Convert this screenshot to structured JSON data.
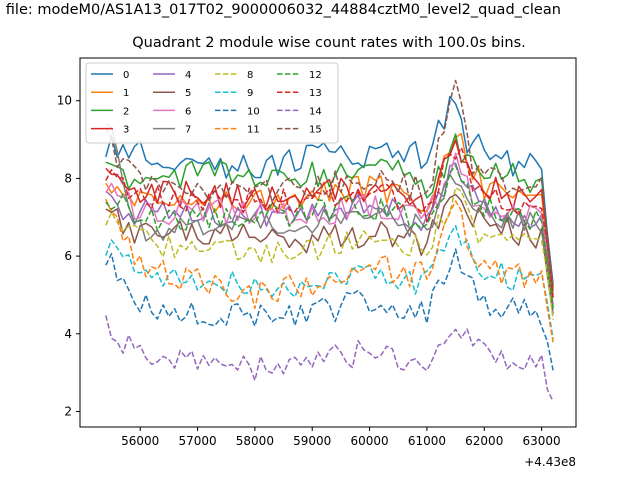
{
  "chart_data": {
    "type": "line",
    "suptitle": "n file: modeM0/AS1A13_017T02_9000006032_44884cztM0_level2_quad_clean",
    "title": "Quadrant 2 module wise count rates with 100.0s bins.",
    "xlabel": "",
    "ylabel": "",
    "x_offset_label": "+4.43e8",
    "xlim": [
      54950,
      63600
    ],
    "ylim": [
      1.6,
      11.1
    ],
    "x_ticks": [
      56000,
      57000,
      58000,
      59000,
      60000,
      61000,
      62000,
      63000
    ],
    "y_ticks": [
      2,
      4,
      6,
      8,
      10
    ],
    "x_range": [
      55400,
      63250
    ],
    "grid": false,
    "legend_placement": "top-left",
    "series": [
      {
        "name": "0",
        "color": "#1f77b4",
        "dash": "solid",
        "points": [
          [
            55400,
            8.9
          ],
          [
            56000,
            8.7
          ],
          [
            57000,
            8.3
          ],
          [
            58000,
            8.3
          ],
          [
            59000,
            8.6
          ],
          [
            60000,
            8.6
          ],
          [
            60500,
            8.8
          ],
          [
            61000,
            8.5
          ],
          [
            61450,
            10.0
          ],
          [
            61700,
            9.0
          ],
          [
            62000,
            8.7
          ],
          [
            62500,
            8.3
          ],
          [
            63000,
            8.4
          ],
          [
            63250,
            4.5
          ]
        ]
      },
      {
        "name": "1",
        "color": "#ff7f0e",
        "dash": "solid",
        "points": [
          [
            55400,
            8.0
          ],
          [
            56000,
            7.4
          ],
          [
            57000,
            7.4
          ],
          [
            58000,
            7.5
          ],
          [
            59000,
            7.6
          ],
          [
            60000,
            7.8
          ],
          [
            60500,
            7.6
          ],
          [
            61000,
            7.4
          ],
          [
            61500,
            9.3
          ],
          [
            61800,
            8.3
          ],
          [
            62000,
            7.8
          ],
          [
            62500,
            7.6
          ],
          [
            63000,
            7.5
          ],
          [
            63250,
            4.6
          ]
        ]
      },
      {
        "name": "2",
        "color": "#2ca02c",
        "dash": "solid",
        "points": [
          [
            55400,
            8.2
          ],
          [
            56000,
            7.9
          ],
          [
            57000,
            8.2
          ],
          [
            58000,
            8.0
          ],
          [
            59000,
            8.1
          ],
          [
            60000,
            8.2
          ],
          [
            60500,
            8.3
          ],
          [
            61000,
            7.5
          ],
          [
            61500,
            8.8
          ],
          [
            61800,
            8.3
          ],
          [
            62000,
            8.3
          ],
          [
            62500,
            8.1
          ],
          [
            63000,
            7.9
          ],
          [
            63250,
            4.4
          ]
        ]
      },
      {
        "name": "3",
        "color": "#d62728",
        "dash": "solid",
        "points": [
          [
            55400,
            8.1
          ],
          [
            56000,
            7.6
          ],
          [
            57000,
            7.6
          ],
          [
            58000,
            7.5
          ],
          [
            59000,
            7.6
          ],
          [
            60000,
            7.7
          ],
          [
            60500,
            7.5
          ],
          [
            61000,
            7.2
          ],
          [
            61500,
            8.9
          ],
          [
            61800,
            8.0
          ],
          [
            62000,
            7.8
          ],
          [
            62500,
            7.5
          ],
          [
            63000,
            7.5
          ],
          [
            63250,
            4.3
          ]
        ]
      },
      {
        "name": "4",
        "color": "#9467bd",
        "dash": "solid",
        "points": [
          [
            55400,
            7.4
          ],
          [
            56000,
            7.1
          ],
          [
            57000,
            7.1
          ],
          [
            58000,
            7.0
          ],
          [
            59000,
            7.2
          ],
          [
            60000,
            7.3
          ],
          [
            60500,
            7.1
          ],
          [
            61000,
            6.9
          ],
          [
            61500,
            8.3
          ],
          [
            61800,
            7.6
          ],
          [
            62000,
            7.3
          ],
          [
            62500,
            7.1
          ],
          [
            63000,
            7.0
          ],
          [
            63250,
            4.2
          ]
        ]
      },
      {
        "name": "5",
        "color": "#8c564b",
        "dash": "solid",
        "points": [
          [
            55400,
            7.2
          ],
          [
            56000,
            6.5
          ],
          [
            57000,
            6.6
          ],
          [
            58000,
            6.5
          ],
          [
            59000,
            6.4
          ],
          [
            60000,
            6.6
          ],
          [
            60500,
            6.5
          ],
          [
            61000,
            6.3
          ],
          [
            61500,
            7.9
          ],
          [
            61800,
            7.1
          ],
          [
            62000,
            6.9
          ],
          [
            62500,
            6.6
          ],
          [
            63000,
            6.5
          ],
          [
            63250,
            4.0
          ]
        ]
      },
      {
        "name": "6",
        "color": "#e377c2",
        "dash": "solid",
        "points": [
          [
            55400,
            7.6
          ],
          [
            56000,
            7.2
          ],
          [
            57000,
            7.1
          ],
          [
            58000,
            7.2
          ],
          [
            59000,
            7.1
          ],
          [
            60000,
            7.3
          ],
          [
            60500,
            7.2
          ],
          [
            61000,
            7.0
          ],
          [
            61500,
            8.4
          ],
          [
            61800,
            7.6
          ],
          [
            62000,
            7.4
          ],
          [
            62500,
            7.1
          ],
          [
            63000,
            7.0
          ],
          [
            63250,
            4.2
          ]
        ]
      },
      {
        "name": "7",
        "color": "#7f7f7f",
        "dash": "solid",
        "points": [
          [
            55400,
            9.5
          ],
          [
            56000,
            6.6
          ],
          [
            57000,
            6.8
          ],
          [
            58000,
            6.9
          ],
          [
            59000,
            6.9
          ],
          [
            60000,
            7.1
          ],
          [
            60500,
            6.9
          ],
          [
            61000,
            6.7
          ],
          [
            61500,
            8.1
          ],
          [
            61800,
            7.4
          ],
          [
            62000,
            7.2
          ],
          [
            62500,
            6.9
          ],
          [
            63000,
            6.8
          ],
          [
            63250,
            4.1
          ]
        ]
      },
      {
        "name": "8",
        "color": "#bcbd22",
        "dash": "dashed",
        "points": [
          [
            55400,
            7.0
          ],
          [
            56000,
            6.4
          ],
          [
            57000,
            6.2
          ],
          [
            58000,
            6.0
          ],
          [
            59000,
            6.2
          ],
          [
            60000,
            6.5
          ],
          [
            60500,
            6.3
          ],
          [
            61000,
            6.2
          ],
          [
            61500,
            7.6
          ],
          [
            61800,
            6.8
          ],
          [
            62000,
            6.5
          ],
          [
            62500,
            6.3
          ],
          [
            63000,
            6.2
          ],
          [
            63250,
            3.9
          ]
        ]
      },
      {
        "name": "9",
        "color": "#17becf",
        "dash": "dashed",
        "points": [
          [
            55400,
            6.2
          ],
          [
            56000,
            5.6
          ],
          [
            57000,
            5.4
          ],
          [
            58000,
            5.2
          ],
          [
            59000,
            5.3
          ],
          [
            60000,
            5.6
          ],
          [
            60500,
            5.4
          ],
          [
            61000,
            5.3
          ],
          [
            61500,
            6.8
          ],
          [
            61800,
            5.9
          ],
          [
            62000,
            5.7
          ],
          [
            62500,
            5.4
          ],
          [
            63000,
            5.3
          ],
          [
            63250,
            3.5
          ]
        ]
      },
      {
        "name": "10",
        "color": "#1f77b4",
        "dash": "dashed",
        "points": [
          [
            55400,
            6.1
          ],
          [
            56000,
            4.8
          ],
          [
            57000,
            4.5
          ],
          [
            58000,
            4.4
          ],
          [
            59000,
            4.5
          ],
          [
            60000,
            4.9
          ],
          [
            60500,
            4.7
          ],
          [
            61000,
            4.6
          ],
          [
            61500,
            6.3
          ],
          [
            61800,
            5.2
          ],
          [
            62000,
            4.8
          ],
          [
            62500,
            4.6
          ],
          [
            63000,
            4.5
          ],
          [
            63250,
            2.7
          ]
        ]
      },
      {
        "name": "11",
        "color": "#ff7f0e",
        "dash": "dashed",
        "points": [
          [
            55400,
            7.3
          ],
          [
            56000,
            5.7
          ],
          [
            57000,
            5.4
          ],
          [
            58000,
            5.0
          ],
          [
            59000,
            5.3
          ],
          [
            60000,
            5.9
          ],
          [
            60500,
            5.6
          ],
          [
            61000,
            5.5
          ],
          [
            61500,
            7.2
          ],
          [
            61800,
            6.1
          ],
          [
            62000,
            5.8
          ],
          [
            62500,
            5.5
          ],
          [
            63000,
            5.3
          ],
          [
            63250,
            3.4
          ]
        ]
      },
      {
        "name": "12",
        "color": "#2ca02c",
        "dash": "dashed",
        "points": [
          [
            55400,
            7.5
          ],
          [
            56000,
            7.0
          ],
          [
            57000,
            6.9
          ],
          [
            58000,
            7.0
          ],
          [
            59000,
            7.1
          ],
          [
            60000,
            7.3
          ],
          [
            60500,
            7.1
          ],
          [
            61000,
            6.9
          ],
          [
            61500,
            8.3
          ],
          [
            61800,
            7.6
          ],
          [
            62000,
            7.3
          ],
          [
            62500,
            7.0
          ],
          [
            63000,
            6.9
          ],
          [
            63250,
            4.1
          ]
        ]
      },
      {
        "name": "13",
        "color": "#d62728",
        "dash": "dashed",
        "points": [
          [
            55400,
            8.0
          ],
          [
            56000,
            7.5
          ],
          [
            57000,
            7.5
          ],
          [
            58000,
            7.4
          ],
          [
            59000,
            7.5
          ],
          [
            60000,
            7.7
          ],
          [
            60500,
            7.5
          ],
          [
            61000,
            7.2
          ],
          [
            61500,
            8.8
          ],
          [
            61800,
            7.9
          ],
          [
            62000,
            7.7
          ],
          [
            62500,
            7.4
          ],
          [
            63000,
            7.3
          ],
          [
            63250,
            4.3
          ]
        ]
      },
      {
        "name": "14",
        "color": "#9467bd",
        "dash": "dashed",
        "points": [
          [
            55400,
            4.3
          ],
          [
            56000,
            3.4
          ],
          [
            57000,
            3.3
          ],
          [
            58000,
            3.1
          ],
          [
            59000,
            3.2
          ],
          [
            60000,
            3.6
          ],
          [
            60500,
            3.4
          ],
          [
            61000,
            3.3
          ],
          [
            61500,
            4.4
          ],
          [
            61800,
            3.7
          ],
          [
            62000,
            3.5
          ],
          [
            62500,
            3.3
          ],
          [
            63000,
            3.3
          ],
          [
            63250,
            2.0
          ]
        ]
      },
      {
        "name": "15",
        "color": "#8c564b",
        "dash": "dashed",
        "points": [
          [
            55400,
            9.0
          ],
          [
            56000,
            7.9
          ],
          [
            57000,
            7.8
          ],
          [
            58000,
            7.7
          ],
          [
            59000,
            7.8
          ],
          [
            60000,
            8.0
          ],
          [
            60500,
            7.9
          ],
          [
            61000,
            7.6
          ],
          [
            61500,
            10.6
          ],
          [
            61800,
            8.4
          ],
          [
            62000,
            8.1
          ],
          [
            62500,
            7.8
          ],
          [
            63000,
            7.7
          ],
          [
            63250,
            4.6
          ]
        ]
      }
    ]
  }
}
